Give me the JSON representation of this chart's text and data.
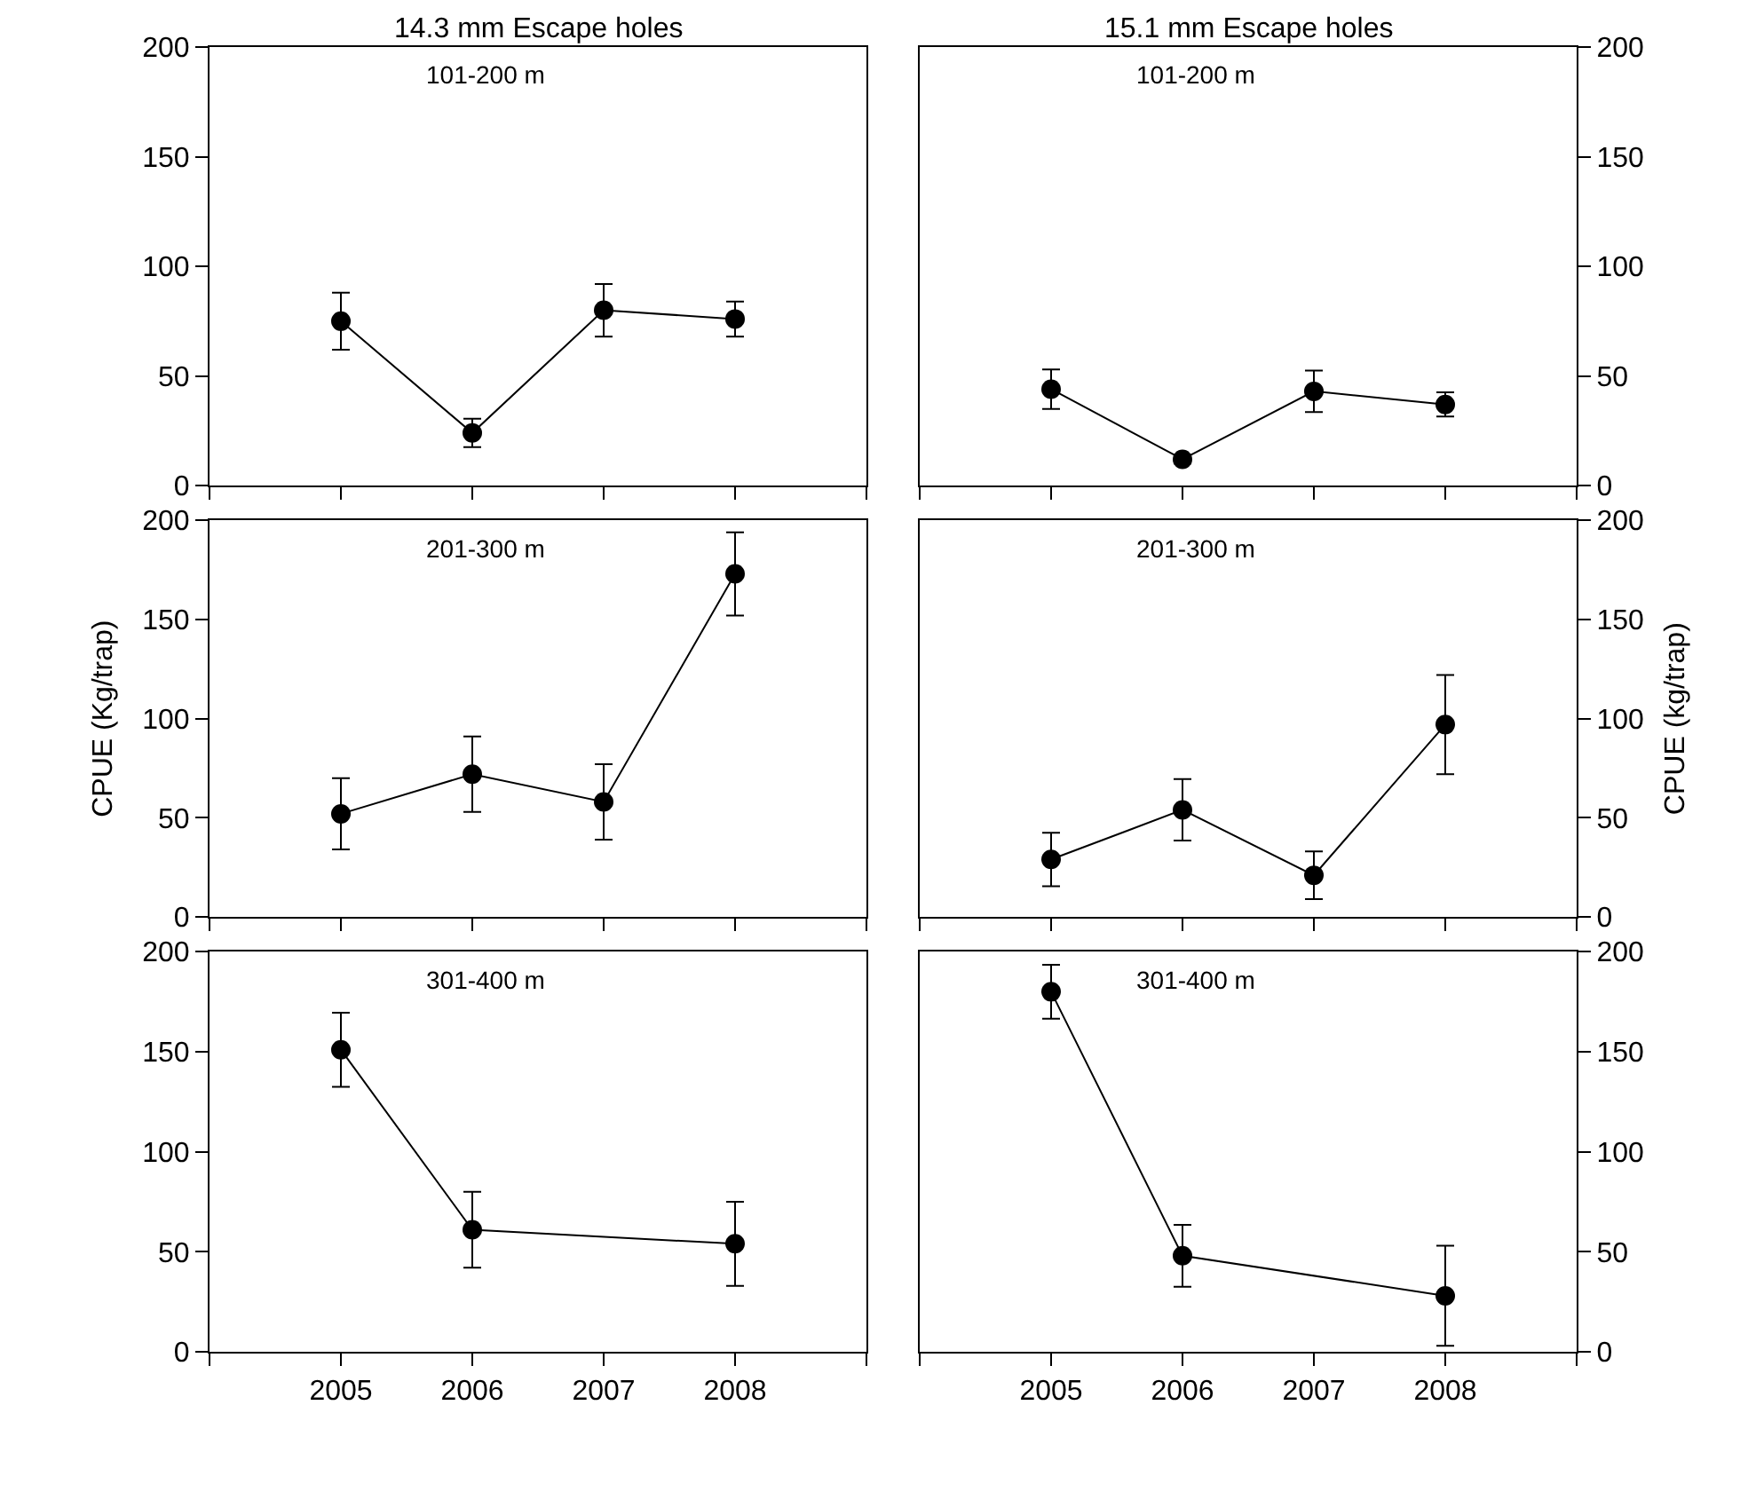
{
  "chart_data": [
    {
      "type": "line",
      "title": "14.3 mm Escape holes",
      "annotations": [
        "101-200 m"
      ],
      "x": [
        2005,
        2006,
        2007,
        2008
      ],
      "xlim": [
        2004,
        2009
      ],
      "xticks": [
        2005,
        2006,
        2007,
        2008
      ],
      "ylim": [
        0,
        200
      ],
      "yticks": [
        0,
        50,
        100,
        150,
        200
      ],
      "marker": "circle",
      "line_style": "solid",
      "tick_labels": "y",
      "series": [
        {
          "color": "#000000",
          "values": [
            75,
            24,
            80,
            76
          ],
          "errors": [
            13,
            6.5,
            12,
            8
          ]
        }
      ]
    },
    {
      "type": "line",
      "title": "15.1 mm Escape holes",
      "annotations": [
        "101-200 m"
      ],
      "x": [
        2005,
        2006,
        2007,
        2008
      ],
      "xlim": [
        2004,
        2009
      ],
      "xticks": [
        2005,
        2006,
        2007,
        2008
      ],
      "ylim": [
        0,
        200
      ],
      "yticks": [
        0,
        50,
        100,
        150,
        200
      ],
      "marker": "circle",
      "line_style": "solid",
      "tick_labels": "y",
      "series": [
        {
          "color": "#000000",
          "values": [
            44,
            12,
            43,
            37
          ],
          "errors": [
            9,
            2,
            9.5,
            5.5
          ]
        }
      ]
    },
    {
      "type": "line",
      "ylabel": "CPUE (Kg/trap)",
      "annotations": [
        "201-300 m"
      ],
      "x": [
        2005,
        2006,
        2007,
        2008
      ],
      "xlim": [
        2004,
        2009
      ],
      "xticks": [
        2005,
        2006,
        2007,
        2008
      ],
      "ylim": [
        0,
        200
      ],
      "yticks": [
        0,
        50,
        100,
        150,
        200
      ],
      "marker": "circle",
      "line_style": "solid",
      "tick_labels": "y",
      "series": [
        {
          "color": "#000000",
          "values": [
            52,
            72,
            58,
            173
          ],
          "errors": [
            18,
            19,
            19,
            21
          ]
        }
      ]
    },
    {
      "type": "line",
      "ylabel": "CPUE (kg/trap)",
      "annotations": [
        "201-300 m"
      ],
      "x": [
        2005,
        2006,
        2007,
        2008
      ],
      "xlim": [
        2004,
        2009
      ],
      "xticks": [
        2005,
        2006,
        2007,
        2008
      ],
      "ylim": [
        0,
        200
      ],
      "yticks": [
        0,
        50,
        100,
        150,
        200
      ],
      "marker": "circle",
      "line_style": "solid",
      "tick_labels": "y",
      "series": [
        {
          "color": "#000000",
          "values": [
            29,
            54,
            21,
            97
          ],
          "errors": [
            13.5,
            15.5,
            12,
            25
          ]
        }
      ]
    },
    {
      "type": "line",
      "annotations": [
        "301-400 m"
      ],
      "x": [
        2005,
        2006,
        2008
      ],
      "xlim": [
        2004,
        2009
      ],
      "xticks": [
        2005,
        2006,
        2007,
        2008
      ],
      "ylim": [
        0,
        200
      ],
      "yticks": [
        0,
        50,
        100,
        150,
        200
      ],
      "marker": "circle",
      "line_style": "solid",
      "series": [
        {
          "color": "#000000",
          "values": [
            151,
            61,
            54
          ],
          "errors": [
            18.5,
            19,
            21
          ]
        }
      ]
    },
    {
      "type": "line",
      "annotations": [
        "301-400 m"
      ],
      "x": [
        2005,
        2006,
        2008
      ],
      "xlim": [
        2004,
        2009
      ],
      "xticks": [
        2005,
        2006,
        2007,
        2008
      ],
      "ylim": [
        0,
        200
      ],
      "yticks": [
        0,
        50,
        100,
        150,
        200
      ],
      "marker": "circle",
      "line_style": "solid",
      "series": [
        {
          "color": "#000000",
          "values": [
            180,
            48,
            28
          ],
          "errors": [
            13.5,
            15.5,
            25
          ]
        }
      ]
    }
  ]
}
